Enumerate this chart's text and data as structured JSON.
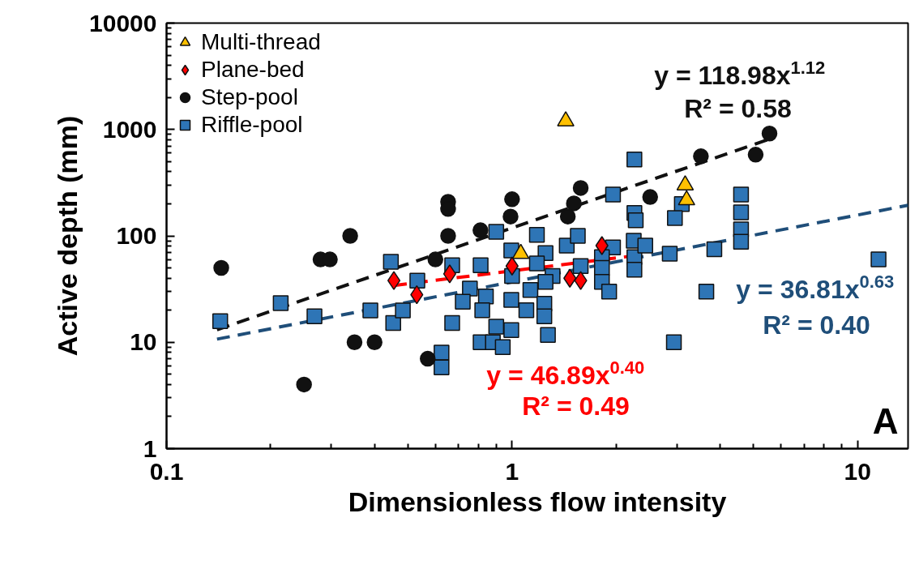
{
  "chart_data": {
    "type": "scatter",
    "xlabel": "Dimensionless flow intensity",
    "ylabel": "Active depth (mm)",
    "log": "xy",
    "xlim": [
      0.1,
      14
    ],
    "ylim": [
      1,
      10000
    ],
    "xticks": [
      0.1,
      1,
      10
    ],
    "yticks": [
      1,
      10,
      100,
      1000,
      10000
    ],
    "grid": false,
    "legend": "top left",
    "annotations": [
      "y = 118.98x$^{1.12}$",
      "R² = 0.58",
      "y = 46.89x$^{0.40}$",
      "R² = 0.49",
      "y = 36.81x$^{0.63}$",
      "R² = 0.40",
      "A"
    ],
    "series": [
      {
        "name": "Multi-thread",
        "marker": "triangle",
        "color": "#ffc000",
        "x": [
          1.43,
          3.17,
          3.2,
          1.06
        ],
        "values": [
          1200,
          300,
          217,
          68
        ]
      },
      {
        "name": "Plane-bed",
        "marker": "diamond",
        "color": "#ff0000",
        "x": [
          0.455,
          0.53,
          0.66,
          1.0,
          1.47,
          1.58,
          1.82
        ],
        "values": [
          38,
          28,
          44,
          52,
          40,
          38,
          81
        ]
      },
      {
        "name": "Step-pool",
        "marker": "circle",
        "color": "#111111",
        "x": [
          0.144,
          0.279,
          0.297,
          0.34,
          0.35,
          0.4,
          0.25,
          0.653,
          0.653,
          0.653,
          0.6,
          0.81,
          1.0,
          0.99,
          1.58,
          1.51,
          1.45,
          2.51,
          0.57,
          3.52,
          5.07,
          5.56
        ],
        "values": [
          50,
          60,
          60,
          100,
          10,
          10,
          4,
          209,
          179,
          100,
          60,
          113,
          221,
          152,
          282,
          202,
          152,
          232,
          7,
          560,
          580,
          916
        ]
      },
      {
        "name": "Riffle-pool",
        "marker": "square",
        "color": "#2e75b6",
        "x": [
          0.143,
          0.214,
          0.268,
          0.389,
          0.453,
          0.483,
          0.446,
          0.532,
          0.671,
          0.811,
          0.9,
          0.995,
          1.0,
          1.18,
          1.25,
          1.18,
          1.44,
          1.55,
          1.58,
          1.96,
          1.96,
          1.82,
          1.82,
          1.82,
          1.91,
          2.26,
          2.26,
          2.28,
          2.25,
          2.26,
          2.26,
          2.43,
          0.755,
          0.72,
          0.84,
          0.82,
          0.671,
          0.9,
          0.995,
          0.995,
          0.811,
          0.88,
          0.94,
          1.13,
          1.1,
          1.24,
          1.24,
          1.27,
          0.625,
          0.625,
          1.31,
          1.25,
          3.1,
          2.96,
          2.86,
          3.85,
          4.6,
          4.6,
          4.6,
          4.6,
          3.65,
          2.94,
          11.5
        ],
        "values": [
          15.8,
          23.3,
          17.5,
          19.9,
          15.2,
          19.9,
          57,
          38,
          53,
          53,
          109,
          73,
          42,
          102,
          69,
          55,
          81,
          100,
          52,
          245,
          78,
          63,
          50,
          37,
          30,
          522,
          164,
          140,
          90,
          63,
          48,
          81,
          32,
          24,
          27,
          20,
          15.2,
          14,
          25,
          13,
          10,
          10,
          9,
          31,
          20,
          23,
          17.5,
          11.7,
          8,
          5.8,
          42,
          37,
          199,
          147,
          68,
          75,
          245,
          166,
          115,
          88,
          30,
          10,
          60
        ]
      },
      {
        "type": "line",
        "color": "#111111",
        "line_style": "dashed",
        "x": [
          0.14,
          5.5
        ],
        "values": [
          13.1,
          803
        ]
      },
      {
        "type": "line",
        "color": "#ff0000",
        "line_style": "dashed",
        "x": [
          0.455,
          2.24
        ],
        "values": [
          34.2,
          64.8
        ]
      },
      {
        "type": "line",
        "color": "#1f4e79",
        "line_style": "dashed",
        "x": [
          0.14,
          14
        ],
        "values": [
          10.7,
          194
        ]
      }
    ]
  }
}
